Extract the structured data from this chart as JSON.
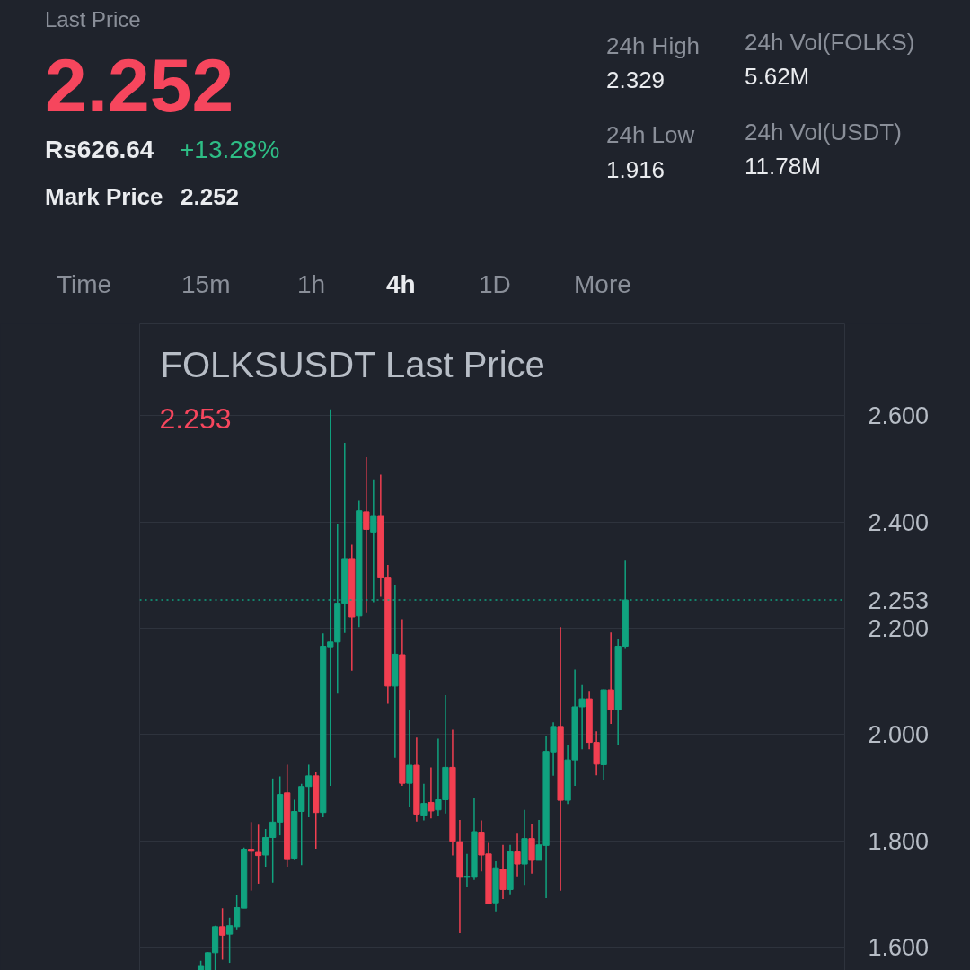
{
  "chart_data": {
    "type": "candlestick",
    "title": "FOLKSUSDT Last Price",
    "categories": [
      null,
      null,
      null,
      null,
      null,
      null,
      null,
      null,
      null,
      null,
      null,
      null,
      null,
      null,
      null,
      null,
      null,
      null,
      null,
      null,
      null,
      null,
      null,
      null,
      null,
      null,
      null,
      null,
      null,
      null,
      null,
      null,
      null,
      null,
      null,
      null,
      null,
      null,
      null,
      null,
      null,
      null,
      null,
      null,
      null,
      null,
      null,
      null,
      null,
      null,
      null,
      null,
      null,
      null,
      null,
      null,
      null,
      null,
      null,
      null,
      null,
      null,
      null,
      null,
      null,
      null,
      null,
      null,
      null,
      null,
      null,
      null,
      null,
      null,
      null,
      null,
      null,
      null,
      null,
      null,
      null,
      null,
      null,
      null,
      null,
      null,
      null,
      null,
      null,
      null,
      null,
      null,
      null,
      null,
      null,
      null,
      null,
      null
    ],
    "ohlc": [
      null,
      null,
      null,
      null,
      null,
      null,
      null,
      null,
      [
        1.555,
        1.574,
        1.552,
        1.565
      ],
      [
        1.555,
        1.59,
        1.552,
        1.589
      ],
      [
        1.589,
        1.64,
        1.555,
        1.638
      ],
      [
        1.638,
        1.673,
        1.576,
        1.622
      ],
      [
        1.624,
        1.655,
        1.57,
        1.64
      ],
      [
        1.638,
        1.697,
        1.633,
        1.674
      ],
      [
        1.673,
        1.787,
        1.673,
        1.784
      ],
      [
        1.784,
        1.835,
        1.706,
        1.78
      ],
      [
        1.778,
        1.83,
        1.719,
        1.772
      ],
      [
        1.773,
        1.822,
        1.751,
        1.806
      ],
      [
        1.806,
        1.917,
        1.721,
        1.835
      ],
      [
        1.835,
        1.921,
        1.81,
        1.887
      ],
      [
        1.89,
        1.943,
        1.751,
        1.766
      ],
      [
        1.767,
        1.877,
        1.765,
        1.855
      ],
      [
        1.855,
        1.907,
        1.754,
        1.902
      ],
      [
        1.902,
        1.943,
        1.844,
        1.922
      ],
      [
        1.922,
        1.93,
        1.785,
        1.853
      ],
      [
        1.853,
        2.19,
        1.844,
        2.166
      ],
      [
        2.165,
        2.612,
        1.903,
        2.174
      ],
      [
        2.174,
        2.397,
        2.077,
        2.247
      ],
      [
        2.247,
        2.549,
        2.191,
        2.331
      ],
      [
        2.331,
        2.357,
        2.12,
        2.221
      ],
      [
        2.223,
        2.44,
        2.202,
        2.421
      ],
      [
        2.419,
        2.522,
        2.23,
        2.386
      ],
      [
        2.381,
        2.48,
        2.249,
        2.412
      ],
      [
        2.412,
        2.489,
        2.259,
        2.296
      ],
      [
        2.296,
        2.319,
        2.058,
        2.091
      ],
      [
        2.091,
        2.282,
        1.956,
        2.151
      ],
      [
        2.15,
        2.217,
        1.903,
        1.908
      ],
      [
        1.908,
        2.046,
        1.863,
        1.942
      ],
      [
        1.942,
        1.994,
        1.836,
        1.85
      ],
      [
        1.848,
        1.907,
        1.838,
        1.87
      ],
      [
        1.872,
        1.938,
        1.842,
        1.856
      ],
      [
        1.858,
        1.992,
        1.846,
        1.877
      ],
      [
        1.877,
        2.074,
        1.851,
        1.938
      ],
      [
        1.938,
        2.009,
        1.772,
        1.799
      ],
      [
        1.798,
        1.839,
        1.626,
        1.731
      ],
      [
        1.731,
        1.775,
        1.712,
        1.733
      ],
      [
        1.731,
        1.881,
        1.726,
        1.817
      ],
      [
        1.816,
        1.838,
        1.742,
        1.773
      ],
      [
        1.775,
        1.796,
        1.68,
        1.681
      ],
      [
        1.683,
        1.761,
        1.667,
        1.749
      ],
      [
        1.746,
        1.792,
        1.69,
        1.708
      ],
      [
        1.708,
        1.792,
        1.699,
        1.779
      ],
      [
        1.779,
        1.813,
        1.733,
        1.756
      ],
      [
        1.756,
        1.858,
        1.717,
        1.804
      ],
      [
        1.804,
        1.832,
        1.738,
        1.763
      ],
      [
        1.763,
        1.839,
        1.763,
        1.792
      ],
      [
        1.791,
        1.996,
        1.692,
        1.968
      ],
      [
        1.967,
        2.023,
        1.922,
        2.015
      ],
      [
        2.015,
        2.202,
        1.706,
        1.876
      ],
      [
        1.876,
        1.98,
        1.869,
        1.952
      ],
      [
        1.952,
        2.122,
        1.903,
        2.052
      ],
      [
        2.052,
        2.093,
        1.972,
        2.067
      ],
      [
        2.067,
        2.082,
        1.972,
        1.985
      ],
      [
        1.985,
        2.006,
        1.923,
        1.944
      ],
      [
        1.943,
        2.085,
        1.915,
        2.084
      ],
      [
        2.084,
        2.192,
        2.02,
        2.046
      ],
      [
        2.046,
        2.18,
        1.981,
        2.166
      ],
      [
        2.166,
        2.327,
        2.161,
        2.253
      ],
      null,
      null,
      null,
      null,
      null,
      null,
      null,
      null,
      null,
      null,
      null,
      null,
      null,
      null,
      null,
      null,
      null,
      null,
      null,
      null,
      null,
      null,
      null,
      null,
      null,
      null,
      null,
      null,
      null,
      null
    ],
    "ylim": [
      1.549,
      2.773
    ],
    "yticks": [
      {
        "value": 1.6,
        "label": "1.600"
      },
      {
        "value": 1.8,
        "label": "1.800"
      },
      {
        "value": 2.0,
        "label": "2.000"
      },
      {
        "value": 2.2,
        "label": "2.200"
      },
      {
        "value": 2.4,
        "label": "2.400"
      },
      {
        "value": 2.6,
        "label": "2.600"
      }
    ],
    "grid": "y",
    "tick_labels": "y",
    "ref_lines": [
      {
        "axis": "y",
        "value": 2.253,
        "label": "2.253",
        "color": "#10a37f",
        "line_style": "dotted"
      }
    ],
    "annotations": [
      "Last Price",
      "2.252",
      "Rs626.64",
      "+13.28%",
      "Mark Price",
      "2.252",
      "24h High",
      "2.329",
      "24h Low",
      "1.916",
      "24h Vol(FOLKS)",
      "5.62M",
      "24h Vol(USDT)",
      "11.78M",
      "Time",
      "15m",
      "1h",
      "4h",
      "1D",
      "More",
      "2.253"
    ]
  }
}
